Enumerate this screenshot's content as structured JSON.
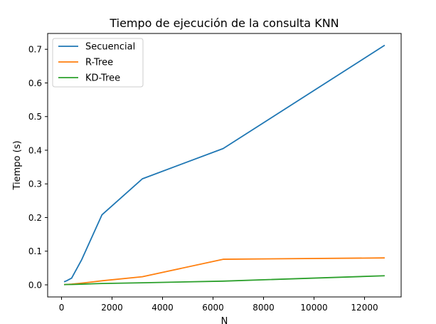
{
  "chart_data": {
    "type": "line",
    "title": "Tiempo de ejecución de la consulta KNN",
    "xlabel": "N",
    "ylabel": "Tiempo (s)",
    "xlim": [
      -550,
      13450
    ],
    "ylim": [
      -0.036,
      0.747
    ],
    "xticks": [
      0,
      2000,
      4000,
      6000,
      8000,
      10000,
      12000
    ],
    "yticks": [
      0.0,
      0.1,
      0.2,
      0.3,
      0.4,
      0.5,
      0.6,
      0.7
    ],
    "xtick_labels": [
      "0",
      "2000",
      "4000",
      "6000",
      "8000",
      "10000",
      "12000"
    ],
    "ytick_labels": [
      "0.0",
      "0.1",
      "0.2",
      "0.3",
      "0.4",
      "0.5",
      "0.6",
      "0.7"
    ],
    "grid": false,
    "legend_position": "top-left",
    "series": [
      {
        "name": "Secuencial",
        "color": "#1f77b4",
        "x": [
          100,
          200,
          400,
          800,
          1600,
          3200,
          6400,
          12800
        ],
        "values": [
          0.009,
          0.012,
          0.02,
          0.075,
          0.208,
          0.315,
          0.405,
          0.712
        ]
      },
      {
        "name": "R-Tree",
        "color": "#ff7f0e",
        "x": [
          100,
          200,
          400,
          800,
          1600,
          3200,
          6400,
          12800
        ],
        "values": [
          0.001,
          0.001,
          0.002,
          0.005,
          0.012,
          0.024,
          0.076,
          0.08
        ]
      },
      {
        "name": "KD-Tree",
        "color": "#2ca02c",
        "x": [
          100,
          200,
          400,
          800,
          1600,
          3200,
          6400,
          12800
        ],
        "values": [
          0.0005,
          0.001,
          0.001,
          0.002,
          0.004,
          0.006,
          0.011,
          0.027
        ]
      }
    ]
  }
}
